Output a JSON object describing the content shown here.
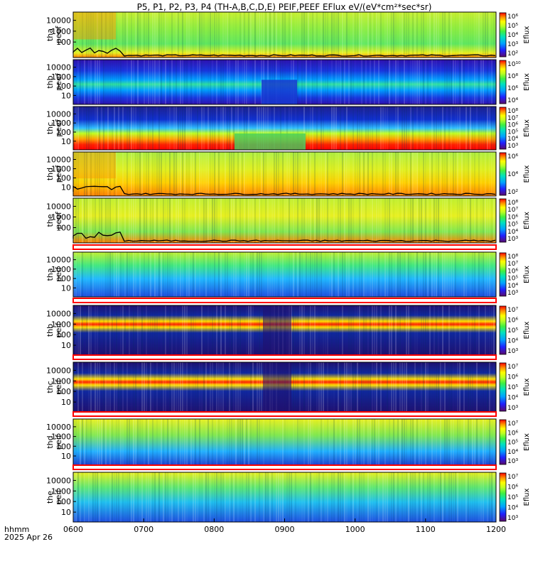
{
  "figure": {
    "title": "P5, P1, P2, P3, P4 (TH-A,B,C,D,E) PEIF,PEEF EFlux eV/(eV*cm²*sec*sr)",
    "time_label_top": "hhmm",
    "time_label_bottom": "2025 Apr 26"
  },
  "chart_data": {
    "type": "heatmap",
    "x_ticks": [
      "0600",
      "0700",
      "0800",
      "0900",
      "1000",
      "1100",
      "1200"
    ],
    "x_range": [
      "0600",
      "1200"
    ],
    "y_scale": "log",
    "colorbar_label": "Eflux",
    "colormap": [
      "#5a0b6b",
      "#2020ff",
      "#00a0ff",
      "#00e0c0",
      "#40f040",
      "#c0ff20",
      "#ffff00",
      "#ff9000",
      "#ff0000"
    ],
    "panels": [
      {
        "label1": "tha",
        "label2": "peef",
        "y_ticks": [
          "10000",
          "1000",
          "100"
        ],
        "cb_ticks": [
          "10⁶",
          "10⁵",
          "10⁴",
          "10³",
          "10²"
        ],
        "has_line": true
      },
      {
        "label1": "thb",
        "label2": "peef",
        "y_ticks": [
          "10000",
          "1000",
          "100",
          "10"
        ],
        "cb_ticks": [
          "10¹⁰",
          "10⁸",
          "10⁶",
          "10⁴"
        ],
        "has_line": false
      },
      {
        "label1": "thc",
        "label2": "peef",
        "y_ticks": [
          "10000",
          "1000",
          "100",
          "10"
        ],
        "cb_ticks": [
          "10⁸",
          "10⁷",
          "10⁶",
          "10⁵",
          "10⁴",
          "10³"
        ],
        "has_line": false
      },
      {
        "label1": "thd",
        "label2": "peef",
        "y_ticks": [
          "10000",
          "1000",
          "100",
          "10"
        ],
        "cb_ticks": [
          "10⁶",
          "10⁴",
          "10²"
        ],
        "has_line": true
      },
      {
        "label1": "the",
        "label2": "peef",
        "y_ticks": [
          "10000",
          "1000",
          "100"
        ],
        "cb_ticks": [
          "10⁸",
          "10⁷",
          "10⁶",
          "10⁵",
          "10⁴",
          "10³"
        ],
        "has_line": true
      },
      {
        "label1": "tha",
        "label2": "peif",
        "y_ticks": [
          "10000",
          "1000",
          "100",
          "10"
        ],
        "cb_ticks": [
          "10⁸",
          "10⁷",
          "10⁶",
          "10⁵",
          "10⁴",
          "10³"
        ],
        "has_line": false
      },
      {
        "label1": "thb",
        "label2": "peif",
        "y_ticks": [
          "10000",
          "1000",
          "100",
          "10"
        ],
        "cb_ticks": [
          "10⁷",
          "10⁶",
          "10⁵",
          "10⁴",
          "10³"
        ],
        "has_line": false
      },
      {
        "label1": "thc",
        "label2": "peif",
        "y_ticks": [
          "10000",
          "1000",
          "100",
          "10"
        ],
        "cb_ticks": [
          "10⁷",
          "10⁶",
          "10⁵",
          "10⁴",
          "10³"
        ],
        "has_line": false
      },
      {
        "label1": "thd",
        "label2": "peif",
        "y_ticks": [
          "10000",
          "1000",
          "100",
          "10"
        ],
        "cb_ticks": [
          "10⁷",
          "10⁶",
          "10⁵",
          "10⁴",
          "10³"
        ],
        "has_line": false
      },
      {
        "label1": "the",
        "label2": "peif",
        "y_ticks": [
          "10000",
          "1000",
          "100",
          "10"
        ],
        "cb_ticks": [
          "10⁷",
          "10⁶",
          "10⁵",
          "10⁴",
          "10³"
        ],
        "has_line": false
      }
    ]
  }
}
